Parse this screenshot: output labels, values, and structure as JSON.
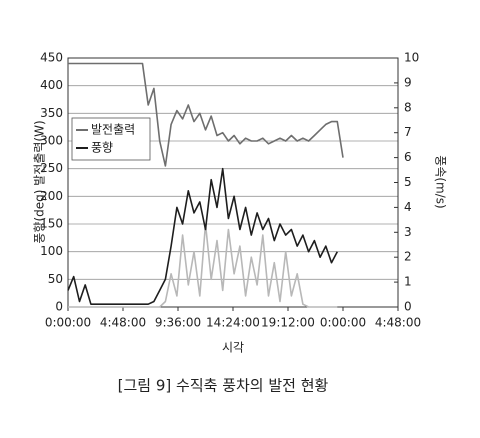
{
  "chart_data": {
    "type": "line",
    "caption": "[그림 9] 수직축 풍차의 발전 현황",
    "x_label": "시각",
    "y_label": "풍향(deg) 발전출력(W)",
    "y2_label": "풍속(m/s)",
    "x": [
      0,
      0.5,
      1,
      1.5,
      2,
      2.5,
      3,
      3.5,
      4,
      4.5,
      5,
      5.5,
      6,
      6.5,
      7,
      7.5,
      8,
      8.5,
      9,
      9.5,
      10,
      10.5,
      11,
      11.5,
      12,
      12.5,
      13,
      13.5,
      14,
      14.5,
      15,
      15.5,
      16,
      16.5,
      17,
      17.5,
      18,
      18.5,
      19,
      19.5,
      20,
      20.5,
      21,
      21.5,
      22,
      22.5,
      23,
      23.5,
      24
    ],
    "series": [
      {
        "color": "#b8b8b8",
        "values": [
          0,
          0,
          0,
          0,
          0,
          0,
          0,
          0,
          0,
          0,
          0,
          0,
          0,
          0,
          0,
          0,
          0,
          10,
          60,
          20,
          130,
          40,
          100,
          20,
          150,
          50,
          120,
          30,
          140,
          60,
          110,
          20,
          90,
          40,
          130,
          20,
          80,
          10,
          100,
          20,
          60,
          5,
          0,
          0,
          0,
          0,
          0,
          0,
          null
        ]
      },
      {
        "name": "풍향",
        "color": "#1e1e1e",
        "values": [
          30,
          55,
          10,
          40,
          5,
          5,
          5,
          5,
          5,
          5,
          5,
          5,
          5,
          5,
          5,
          10,
          30,
          50,
          110,
          180,
          150,
          210,
          170,
          190,
          140,
          230,
          180,
          250,
          160,
          200,
          140,
          180,
          130,
          170,
          140,
          160,
          120,
          150,
          130,
          140,
          110,
          130,
          100,
          120,
          90,
          110,
          80,
          100,
          null
        ]
      },
      {
        "name": "발전출력",
        "color": "#6e6e6e",
        "values": [
          440,
          440,
          440,
          440,
          440,
          440,
          440,
          440,
          440,
          440,
          440,
          440,
          440,
          440,
          365,
          395,
          300,
          255,
          330,
          355,
          340,
          365,
          335,
          350,
          320,
          345,
          310,
          315,
          300,
          310,
          295,
          305,
          300,
          300,
          305,
          295,
          300,
          305,
          300,
          310,
          300,
          305,
          300,
          310,
          320,
          330,
          335,
          335,
          270
        ]
      }
    ],
    "xlim": [
      0,
      28.8
    ],
    "xticks": [
      {
        "value": 0,
        "label": "0:00:00"
      },
      {
        "value": 4.8,
        "label": "4:48:00"
      },
      {
        "value": 9.6,
        "label": "9:36:00"
      },
      {
        "value": 14.4,
        "label": "14:24:00"
      },
      {
        "value": 19.2,
        "label": "19:12:00"
      },
      {
        "value": 24,
        "label": "0:00:00"
      },
      {
        "value": 28.8,
        "label": "4:48:00"
      }
    ],
    "ylim": [
      0,
      450
    ],
    "yticks": [
      0,
      50,
      100,
      150,
      200,
      250,
      300,
      350,
      400,
      450
    ],
    "y2lim": [
      0,
      10
    ],
    "y2ticks": [
      0,
      1,
      2,
      3,
      4,
      5,
      6,
      7,
      8,
      9,
      10
    ],
    "grid": true,
    "legend": "upper left"
  }
}
